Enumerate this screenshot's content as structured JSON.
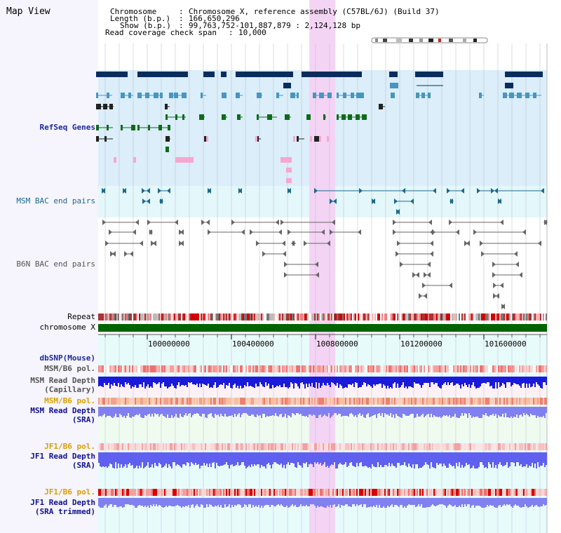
{
  "title": "Map View",
  "header": {
    "chromosome_label": "Chromosome",
    "chromosome_value": "Chromosome X, reference assembly (C57BL/6J) (Build 37)",
    "length_label": "Length (b.p.)",
    "length_value": "166,650,296",
    "show_label": "Show (b.p.)",
    "show_value": "99,763,752-101,887,879 : 2,124,128 bp",
    "coverage_label": "Read coverage check span",
    "coverage_value": "10,000",
    "separator": ":"
  },
  "tracks": {
    "refseq": "RefSeq Genes",
    "msm_bac": "MSM BAC end pairs",
    "b6n_bac": "B6N BAC end pairs",
    "repeat": "Repeat",
    "chromosome": "chromosome X",
    "dbsnp": "dbSNP(Mouse)",
    "msm_b6_pol_1": "MSM/B6 pol.",
    "msm_depth_cap_1": "MSM Read Depth",
    "msm_depth_cap_2": "(Capillary)",
    "msm_b6_pol_2": "MSM/B6 pol.",
    "msm_depth_sra_1": "MSM Read Depth",
    "msm_depth_sra_2": "(SRA)",
    "jf1_pol_1": "JF1/B6 pol.",
    "jf1_depth_sra_1": "JF1 Read Depth",
    "jf1_depth_sra_2": "(SRA)",
    "jf1_pol_2": "JF1/B6 pol.",
    "jf1_depth_trim_1": "JF1 Read Depth",
    "jf1_depth_trim_2": "(SRA trimmed)"
  },
  "axis": {
    "ticks": [
      "100000000",
      "100400000",
      "100800000",
      "101200000",
      "101600000"
    ]
  },
  "colors": {
    "refseq_bg": "#dbeefa",
    "msm_bac_bg": "#e4f7fa",
    "highlight": "#f4d4f4",
    "chromosome_bar": "#006400",
    "gene_dark": "#0a2d5c",
    "gene_mid": "#4796bf",
    "gene_green": "#0f6b1a",
    "gene_pink": "#f7a7cf",
    "depth_blue": "#1a1ad8",
    "depth_violet": "#8080f0"
  }
}
